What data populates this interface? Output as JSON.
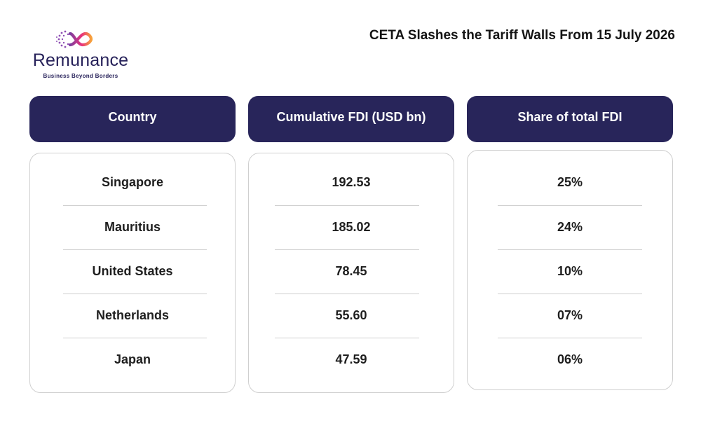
{
  "brand": {
    "name": "Remunance",
    "tagline": "Business Beyond Borders",
    "colors": {
      "navy": "#28255a",
      "pink": "#e8327c",
      "orange": "#f7a23b",
      "purple": "#7b3fa0"
    }
  },
  "title": "CETA Slashes the Tariff Walls From 15 July 2026",
  "table": {
    "headers": [
      "Country",
      "Cumulative FDI (USD bn)",
      "Share of total FDI"
    ],
    "rows": [
      [
        "Singapore",
        "192.53",
        "25%"
      ],
      [
        "Mauritius",
        "185.02",
        "24%"
      ],
      [
        "United States",
        "78.45",
        "10%"
      ],
      [
        "Netherlands",
        "55.60",
        "07%"
      ],
      [
        "Japan",
        "47.59",
        "06%"
      ]
    ]
  }
}
